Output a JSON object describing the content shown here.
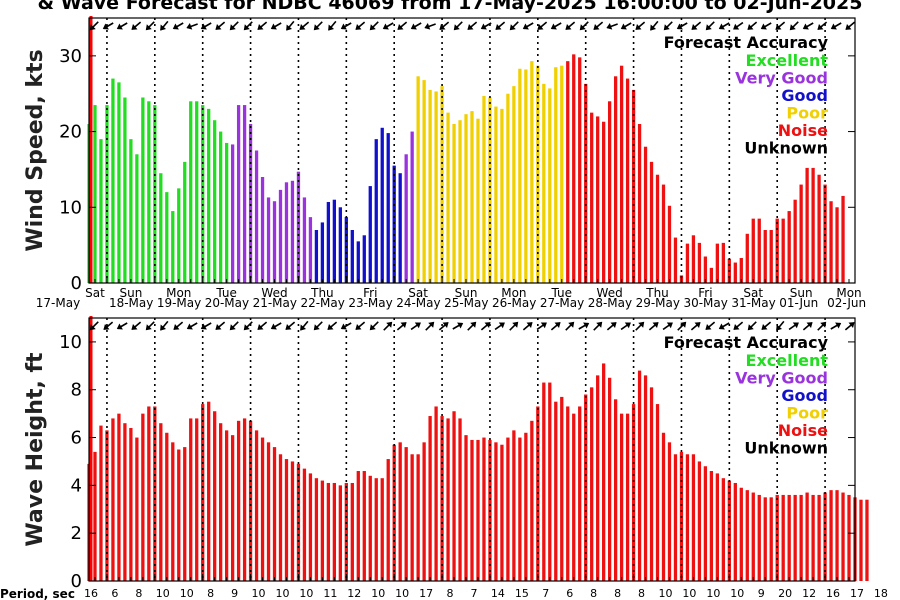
{
  "title": "& Wave Forecast for NDBC 46069 from 17-May-2025 16:00:00 to 02-Jun-2025",
  "colors": {
    "excellent": "#22dd22",
    "very_good": "#9933dd",
    "good": "#1111cc",
    "poor": "#f0d000",
    "noise": "#ee1111",
    "unknown": "#000000",
    "now_line": "#ff0000"
  },
  "legend": {
    "heading": "Forecast Accuracy",
    "items": [
      {
        "label": "Excellent",
        "color": "#22dd22"
      },
      {
        "label": "Very Good",
        "color": "#9933dd"
      },
      {
        "label": "Good",
        "color": "#1111cc"
      },
      {
        "label": "Poor",
        "color": "#f0d000"
      },
      {
        "label": "Noise",
        "color": "#ee1111"
      },
      {
        "label": "Unknown",
        "color": "#000000"
      }
    ]
  },
  "days": [
    {
      "dow": "Sat",
      "date": "17-May"
    },
    {
      "dow": "Sun",
      "date": "18-May"
    },
    {
      "dow": "Mon",
      "date": "19-May"
    },
    {
      "dow": "Tue",
      "date": "20-May"
    },
    {
      "dow": "Wed",
      "date": "21-May"
    },
    {
      "dow": "Thu",
      "date": "22-May"
    },
    {
      "dow": "Fri",
      "date": "23-May"
    },
    {
      "dow": "Sat",
      "date": "24-May"
    },
    {
      "dow": "Sun",
      "date": "25-May"
    },
    {
      "dow": "Mon",
      "date": "26-May"
    },
    {
      "dow": "Tue",
      "date": "27-May"
    },
    {
      "dow": "Wed",
      "date": "28-May"
    },
    {
      "dow": "Thu",
      "date": "29-May"
    },
    {
      "dow": "Fri",
      "date": "30-May"
    },
    {
      "dow": "Sat",
      "date": "31-May"
    },
    {
      "dow": "Sun",
      "date": "01-Jun"
    },
    {
      "dow": "Mon",
      "date": "02-Jun"
    }
  ],
  "period_label": "Period, sec",
  "period_values": [
    "16",
    "6",
    "8",
    "10",
    "10",
    "8",
    "9",
    "10",
    "10",
    "10",
    "11",
    "12",
    "10",
    "10",
    "17",
    "8",
    "7",
    "14",
    "15",
    "7",
    "6",
    "8",
    "8",
    "8",
    "10",
    "10",
    "10",
    "10",
    "9",
    "20",
    "12",
    "16",
    "17",
    "18"
  ],
  "chart_data": [
    {
      "type": "bar",
      "ylabel": "Wind Speed, kts",
      "ylim": [
        0,
        35
      ],
      "yticks": [
        0,
        10,
        20,
        30
      ],
      "x_unit": "hours since 17-May-2025 00:00",
      "x_start": 15,
      "x_step": 3,
      "grid": "vertical dotted lines at day boundaries",
      "legend_position": "top-right",
      "values": [
        21,
        23.5,
        19,
        23.5,
        27,
        26.5,
        24.5,
        19,
        17,
        24.5,
        24,
        23.5,
        14.5,
        12,
        9.5,
        12.5,
        16,
        24,
        24,
        23.5,
        23,
        21.5,
        20,
        18.5,
        18.3,
        23.5,
        23.5,
        21,
        17.5,
        14,
        11.3,
        10.8,
        12.3,
        13.3,
        13.5,
        14.7,
        11.3,
        8.7,
        7,
        8,
        10.7,
        11,
        10,
        8.7,
        7,
        5.5,
        6.3,
        12.8,
        19,
        20.5,
        19.8,
        15.5,
        14.5,
        17,
        20,
        27.3,
        26.8,
        25.5,
        25.3,
        26,
        22.5,
        21,
        21.5,
        22.3,
        22.7,
        21.7,
        24.7,
        24.5,
        23.3,
        23,
        25,
        26,
        28.3,
        28.2,
        29.3,
        28.7,
        26.3,
        25.7,
        28.5,
        28.7,
        29.3,
        30.2,
        29.8,
        26.3,
        22.5,
        22,
        21.3,
        24,
        27.3,
        28.7,
        27,
        25.5,
        21,
        18,
        16,
        14.3,
        13,
        10.2,
        6,
        1,
        5.2,
        6.3,
        5.3,
        3.5,
        2,
        5.2,
        5.3,
        3.2,
        2.7,
        3.3,
        6.5,
        8.5,
        8.5,
        7,
        7,
        8.5,
        8.5,
        9.5,
        11,
        13,
        15.2,
        15.2,
        14.3,
        13,
        10.8,
        10,
        11.5
      ],
      "accuracy": [
        "excellent",
        "excellent",
        "excellent",
        "excellent",
        "excellent",
        "excellent",
        "excellent",
        "excellent",
        "excellent",
        "excellent",
        "excellent",
        "excellent",
        "excellent",
        "excellent",
        "excellent",
        "excellent",
        "excellent",
        "excellent",
        "excellent",
        "excellent",
        "excellent",
        "excellent",
        "excellent",
        "excellent",
        "very_good",
        "very_good",
        "very_good",
        "very_good",
        "very_good",
        "very_good",
        "very_good",
        "very_good",
        "very_good",
        "very_good",
        "very_good",
        "very_good",
        "very_good",
        "very_good",
        "good",
        "good",
        "good",
        "good",
        "good",
        "good",
        "good",
        "good",
        "good",
        "good",
        "good",
        "good",
        "good",
        "good",
        "good",
        "very_good",
        "very_good",
        "poor",
        "poor",
        "poor",
        "poor",
        "poor",
        "poor",
        "poor",
        "poor",
        "poor",
        "poor",
        "poor",
        "poor",
        "poor",
        "poor",
        "poor",
        "poor",
        "poor",
        "poor",
        "poor",
        "poor",
        "poor",
        "poor",
        "poor",
        "poor",
        "poor",
        "noise",
        "noise",
        "noise",
        "noise",
        "noise",
        "noise",
        "noise",
        "noise",
        "noise",
        "noise",
        "noise",
        "noise",
        "noise",
        "noise",
        "noise",
        "noise",
        "noise",
        "noise",
        "noise",
        "noise",
        "noise",
        "noise",
        "noise",
        "noise",
        "noise",
        "noise",
        "noise",
        "noise",
        "noise",
        "noise",
        "noise",
        "noise",
        "noise",
        "noise",
        "noise",
        "noise",
        "noise",
        "noise",
        "noise",
        "noise",
        "noise",
        "noise",
        "noise",
        "noise",
        "noise",
        "noise",
        "noise"
      ]
    },
    {
      "type": "bar",
      "ylabel": "Wave Height, ft",
      "ylim": [
        0,
        11
      ],
      "yticks": [
        0,
        2,
        4,
        6,
        8,
        10
      ],
      "x_unit": "hours since 17-May-2025 00:00",
      "x_start": 15,
      "x_step": 3,
      "grid": "vertical dotted lines at day boundaries",
      "legend_position": "top-right",
      "values": [
        4.9,
        5.4,
        6.5,
        6.3,
        6.8,
        7,
        6.6,
        6.4,
        6,
        7,
        7.3,
        7.3,
        6.6,
        6.2,
        5.8,
        5.5,
        5.6,
        6.8,
        6.8,
        7.4,
        7.5,
        7.1,
        6.6,
        6.3,
        6.1,
        6.7,
        6.8,
        6.7,
        6.3,
        6,
        5.8,
        5.6,
        5.3,
        5.1,
        5.0,
        4.9,
        4.7,
        4.5,
        4.3,
        4.2,
        4.1,
        4.1,
        4.0,
        4.1,
        4.1,
        4.6,
        4.6,
        4.4,
        4.3,
        4.3,
        5.1,
        5.7,
        5.8,
        5.6,
        5.3,
        5.3,
        5.8,
        6.9,
        7.3,
        6.9,
        6.8,
        7.1,
        6.8,
        6.1,
        5.9,
        5.9,
        6.0,
        5.9,
        5.8,
        5.7,
        6.0,
        6.3,
        6.0,
        6.2,
        6.7,
        7.3,
        8.3,
        8.3,
        7.5,
        7.7,
        7.3,
        7.0,
        7.3,
        7.8,
        8.1,
        8.6,
        9.1,
        8.5,
        7.6,
        7.0,
        7.0,
        7.4,
        8.8,
        8.6,
        8.1,
        7.4,
        6.2,
        5.8,
        5.3,
        5.4,
        5.3,
        5.3,
        5.0,
        4.8,
        4.6,
        4.5,
        4.3,
        4.2,
        4.1,
        3.9,
        3.8,
        3.7,
        3.6,
        3.5,
        3.5,
        3.6,
        3.6,
        3.6,
        3.6,
        3.6,
        3.7,
        3.6,
        3.6,
        3.7,
        3.8,
        3.8,
        3.7,
        3.6,
        3.5,
        3.4,
        3.4
      ],
      "accuracy": "noise"
    }
  ]
}
